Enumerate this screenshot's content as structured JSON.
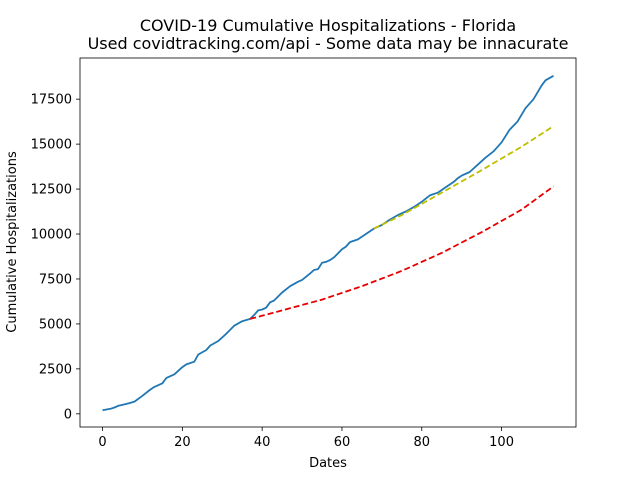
{
  "chart_data": {
    "type": "line",
    "title": "COVID-19 Cumulative Hospitalizations - Florida",
    "subtitle": "Used covidtracking.com/api - Some data may be innacurate",
    "xlabel": "Dates",
    "ylabel": "Cumulative Hospitalizations",
    "xlim": [
      -5.65,
      118.65
    ],
    "ylim": [
      -733,
      19790
    ],
    "xticks": [
      0,
      20,
      40,
      60,
      80,
      100
    ],
    "yticks": [
      0,
      2500,
      5000,
      7500,
      10000,
      12500,
      15000,
      17500
    ],
    "grid": false,
    "series": [
      {
        "style": "solid",
        "color": "#1f77b4",
        "x": [
          0,
          2,
          3,
          4,
          6,
          8,
          10,
          12,
          13,
          15,
          16,
          18,
          20,
          21,
          23,
          24,
          26,
          27,
          29,
          31,
          33,
          35,
          37,
          38,
          39,
          40,
          41,
          42,
          43,
          45,
          47,
          49,
          50,
          52,
          53,
          54,
          55,
          56,
          57,
          58,
          60,
          61,
          62,
          64,
          66,
          68,
          70,
          72,
          74,
          76,
          78,
          80,
          82,
          84,
          86,
          88,
          89,
          90,
          92,
          94,
          96,
          98,
          100,
          102,
          104,
          106,
          108,
          110,
          111,
          113
        ],
        "y": [
          200,
          280,
          350,
          450,
          550,
          680,
          1000,
          1350,
          1500,
          1700,
          2000,
          2200,
          2600,
          2750,
          2900,
          3300,
          3550,
          3800,
          4050,
          4450,
          4900,
          5150,
          5280,
          5500,
          5750,
          5800,
          5900,
          6200,
          6300,
          6750,
          7100,
          7350,
          7450,
          7800,
          8000,
          8050,
          8400,
          8450,
          8550,
          8700,
          9150,
          9300,
          9550,
          9700,
          10000,
          10300,
          10500,
          10800,
          11050,
          11250,
          11500,
          11800,
          12150,
          12300,
          12600,
          12900,
          13100,
          13250,
          13450,
          13850,
          14250,
          14600,
          15100,
          15800,
          16250,
          17000,
          17500,
          18250,
          18550,
          18800
        ]
      },
      {
        "style": "dashed",
        "color": "#e80000",
        "x": [
          37,
          45,
          55,
          65,
          75,
          85,
          95,
          105,
          113
        ],
        "y": [
          5280,
          5750,
          6350,
          7100,
          7950,
          8950,
          10100,
          11350,
          12650
        ]
      },
      {
        "style": "dashed",
        "color": "#bfbf00",
        "x": [
          68,
          75,
          85,
          95,
          105,
          113
        ],
        "y": [
          10300,
          11050,
          12300,
          13550,
          14850,
          16000
        ]
      }
    ]
  }
}
